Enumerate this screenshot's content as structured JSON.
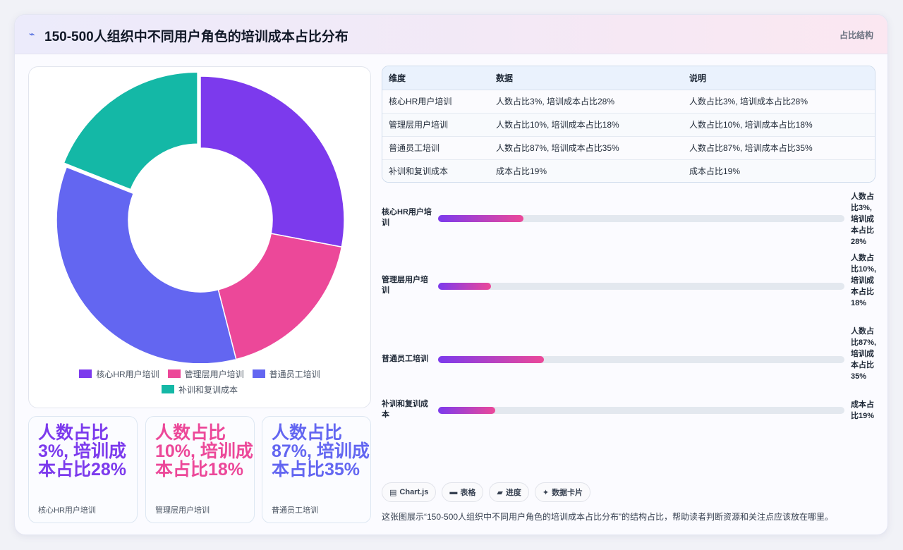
{
  "header": {
    "icon": "sparkle-icon",
    "title": "150-500人组织中不同用户角色的培训成本占比分布",
    "tag": "占比结构"
  },
  "colors": {
    "purple": "#7c3aed",
    "pink": "#ec4899",
    "indigo": "#6366f1",
    "teal": "#14b8a6"
  },
  "chart_data": {
    "type": "pie",
    "style": "doughnut",
    "categories": [
      "核心HR用户培训",
      "管理层用户培训",
      "普通员工培训",
      "补训和复训成本"
    ],
    "values": [
      28,
      18,
      35,
      19
    ],
    "colors": [
      "#7c3aed",
      "#ec4899",
      "#6366f1",
      "#14b8a6"
    ],
    "legend": "bottom",
    "highlighted_slice": "补训和复训成本"
  },
  "stats": [
    {
      "value": "人数占比3%, 培训成本占比28%",
      "label": "核心HR用户培训",
      "color": "#7c3aed"
    },
    {
      "value": "人数占比10%, 培训成本占比18%",
      "label": "管理层用户培训",
      "color": "#ec4899"
    },
    {
      "value": "人数占比87%, 培训成本占比35%",
      "label": "普通员工培训",
      "color": "#6366f1"
    }
  ],
  "table": {
    "headers": [
      "维度",
      "数据",
      "说明"
    ],
    "rows": [
      [
        "核心HR用户培训",
        "人数占比3%, 培训成本占比28%",
        "人数占比3%, 培训成本占比28%"
      ],
      [
        "管理层用户培训",
        "人数占比10%, 培训成本占比18%",
        "人数占比10%, 培训成本占比18%"
      ],
      [
        "普通员工培训",
        "人数占比87%, 培训成本占比35%",
        "人数占比87%, 培训成本占比35%"
      ],
      [
        "补训和复训成本",
        "成本占比19%",
        "成本占比19%"
      ]
    ]
  },
  "progress": [
    {
      "label": "核心HR用户培训",
      "value_text": "人数占比3%, 培训成本占比28%",
      "fraction": 0.21
    },
    {
      "label": "管理层用户培训",
      "value_text": "人数占比10%, 培训成本占比18%",
      "fraction": 0.13
    },
    {
      "label": "普通员工培训",
      "value_text": "人数占比87%, 培训成本占比35%",
      "fraction": 0.26
    },
    {
      "label": "补训和复训成本",
      "value_text": "成本占比19%",
      "fraction": 0.14
    }
  ],
  "chips": [
    {
      "icon": "chart-icon",
      "glyph": "▤",
      "label": "Chart.js"
    },
    {
      "icon": "table-icon",
      "glyph": "▬",
      "label": "表格"
    },
    {
      "icon": "progress-icon",
      "glyph": "▰",
      "label": "进度"
    },
    {
      "icon": "card-icon",
      "glyph": "✦",
      "label": "数据卡片"
    }
  ],
  "footnote": "这张图展示“150-500人组织中不同用户角色的培训成本占比分布”的结构占比，帮助读者判断资源和关注点应该放在哪里。"
}
